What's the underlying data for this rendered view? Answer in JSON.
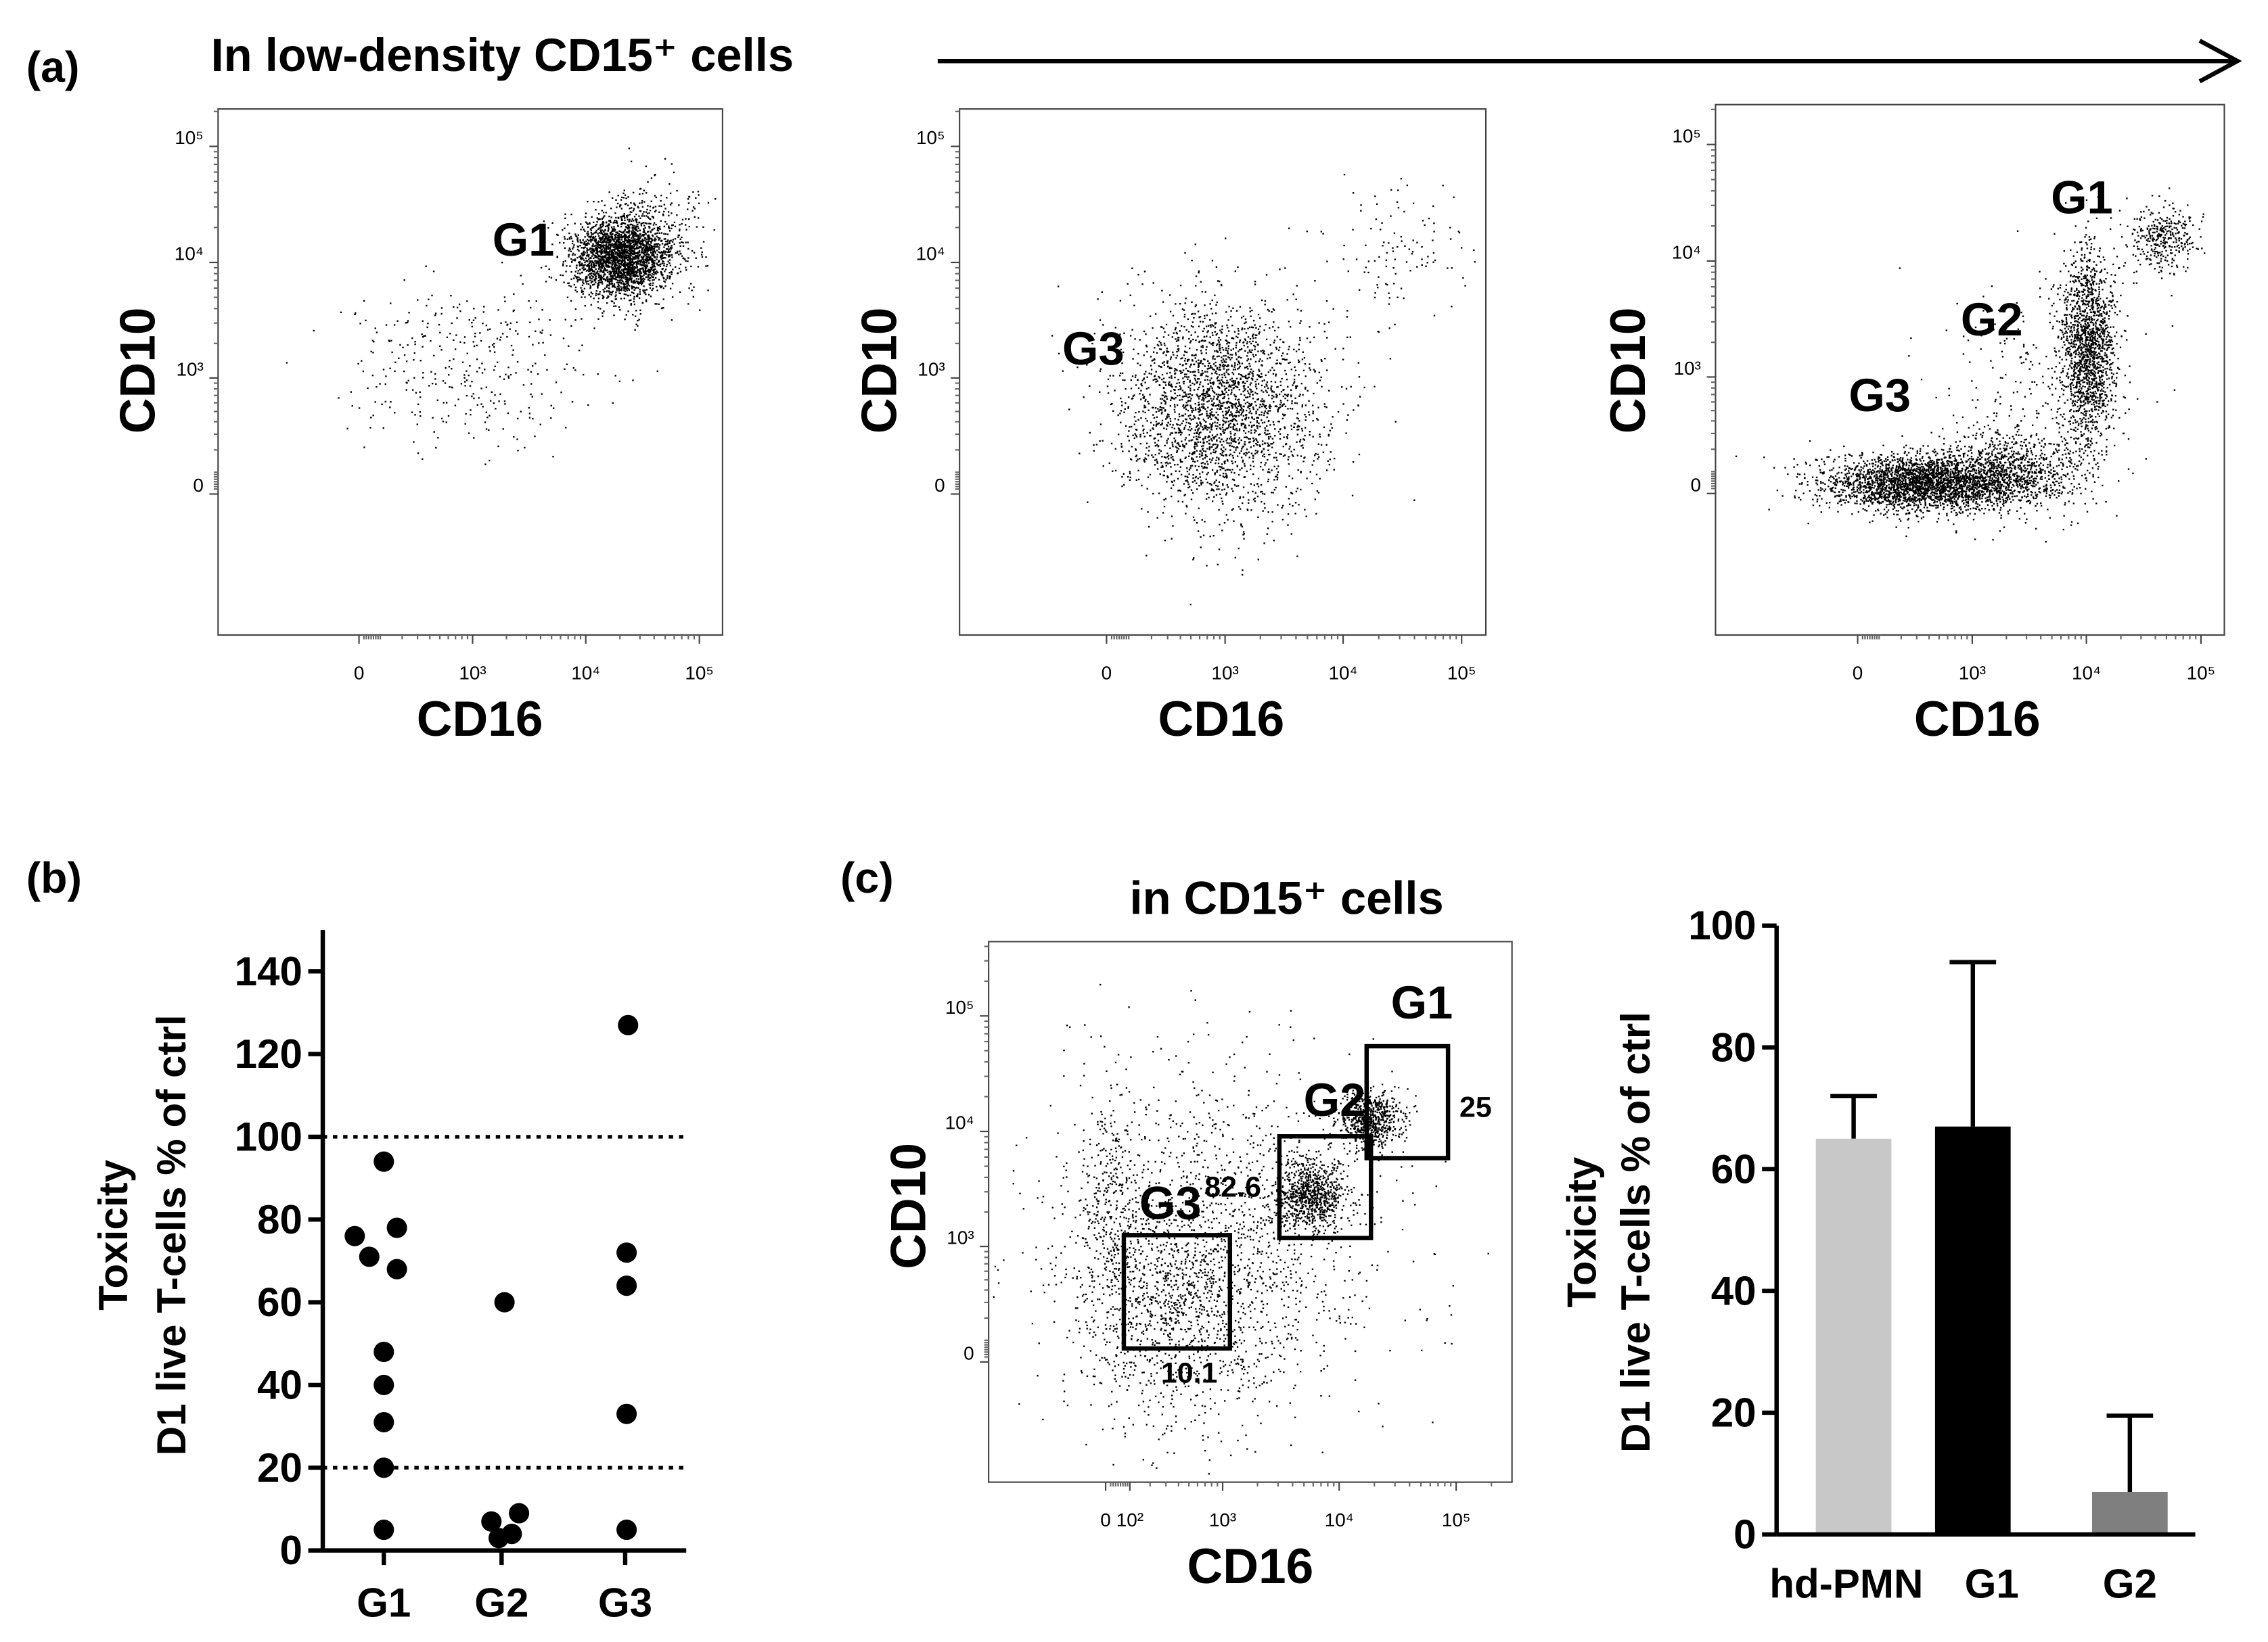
{
  "panel_labels": [
    "(a)",
    "(b)",
    "(c)"
  ],
  "chart_data": [
    {
      "type": "flow",
      "title": "In low-density CD15⁺ cells",
      "x_label": "CD16",
      "y_label": "CD10",
      "xscale": "biexponential",
      "yscale": "biexponential",
      "xlim": [
        -1750,
        160000
      ],
      "ylim": [
        -1650,
        210000
      ],
      "xticks": [
        {
          "value": 0,
          "label": "0"
        },
        {
          "value": 1000,
          "label": "10³"
        },
        {
          "value": 10000,
          "label": "10⁴"
        },
        {
          "value": 100000,
          "label": "10⁵"
        }
      ],
      "yticks": [
        {
          "value": 0,
          "label": "0"
        },
        {
          "value": 1000,
          "label": "10³"
        },
        {
          "value": 10000,
          "label": "10⁴"
        },
        {
          "value": 100000,
          "label": "10⁵"
        }
      ],
      "annotations": [
        "G1"
      ]
    },
    {
      "type": "flow",
      "x_label": "CD16",
      "y_label": "CD10",
      "xscale": "biexponential",
      "yscale": "biexponential",
      "xlim": [
        -1750,
        160000
      ],
      "ylim": [
        -1650,
        210000
      ],
      "xticks": [
        {
          "value": 0,
          "label": "0"
        },
        {
          "value": 1000,
          "label": "10³"
        },
        {
          "value": 10000,
          "label": "10⁴"
        },
        {
          "value": 100000,
          "label": "10⁵"
        }
      ],
      "yticks": [
        {
          "value": 0,
          "label": "0"
        },
        {
          "value": 1000,
          "label": "10³"
        },
        {
          "value": 10000,
          "label": "10⁴"
        },
        {
          "value": 100000,
          "label": "10⁵"
        }
      ],
      "annotations": [
        "G3"
      ]
    },
    {
      "type": "flow",
      "x_label": "CD16",
      "y_label": "CD10",
      "xscale": "biexponential",
      "yscale": "biexponential",
      "xlim": [
        -1750,
        160000
      ],
      "ylim": [
        -1650,
        220000
      ],
      "xticks": [
        {
          "value": 0,
          "label": "0"
        },
        {
          "value": 1000,
          "label": "10³"
        },
        {
          "value": 10000,
          "label": "10⁴"
        },
        {
          "value": 100000,
          "label": "10⁵"
        }
      ],
      "yticks": [
        {
          "value": 0,
          "label": "0"
        },
        {
          "value": 1000,
          "label": "10³"
        },
        {
          "value": 10000,
          "label": "10⁴"
        },
        {
          "value": 100000,
          "label": "10⁵"
        }
      ],
      "annotations": [
        "G1",
        "G2",
        "G3"
      ]
    },
    {
      "type": "strip",
      "y_label": [
        "Toxicity",
        "D1 live T-cells % of ctrl"
      ],
      "categories": [
        "G1",
        "G2",
        "G3"
      ],
      "values": [
        [
          94,
          76,
          71,
          78,
          68,
          48,
          40,
          31,
          20,
          5
        ],
        [
          60,
          7,
          3,
          4,
          9
        ],
        [
          127,
          72,
          64,
          33,
          5
        ]
      ],
      "color": "#000000",
      "ylim": [
        0,
        150
      ],
      "yticks": [
        0,
        20,
        40,
        60,
        80,
        100,
        120,
        140
      ],
      "reference_lines": [
        100,
        20
      ]
    },
    {
      "type": "flow",
      "title": "in CD15⁺ cells",
      "x_label": "CD16",
      "y_label": "CD10",
      "xscale": "biexponential",
      "yscale": "biexponential",
      "xlim": [
        -1000,
        300000
      ],
      "ylim": [
        -1100,
        440000
      ],
      "xticks": [
        {
          "value": 0,
          "label": "0"
        },
        {
          "value": 100,
          "label": "10²"
        },
        {
          "value": 1000,
          "label": "10³"
        },
        {
          "value": 10000,
          "label": "10⁴"
        },
        {
          "value": 100000,
          "label": "10⁵"
        }
      ],
      "yticks": [
        {
          "value": 0,
          "label": "0"
        },
        {
          "value": 1000,
          "label": "10³"
        },
        {
          "value": 10000,
          "label": "10⁴"
        },
        {
          "value": 100000,
          "label": "10⁵"
        }
      ],
      "gates": [
        {
          "name": "G3",
          "percent": 10.1
        },
        {
          "name": "G2",
          "percent": 82.6
        },
        {
          "name": "G1",
          "percent": 25
        }
      ]
    },
    {
      "type": "bar",
      "y_label": [
        "Toxicity",
        "D1 live T-cells % of ctrl"
      ],
      "categories": [
        "hd-PMN",
        "G1",
        "G2"
      ],
      "values": [
        65,
        67,
        7
      ],
      "errors": [
        7,
        27,
        12.5
      ],
      "colors": [
        "#c8c8c8",
        "#000000",
        "#7f7f7f"
      ],
      "ylim": [
        0,
        100
      ],
      "yticks": [
        0,
        20,
        40,
        60,
        80,
        100
      ]
    }
  ]
}
